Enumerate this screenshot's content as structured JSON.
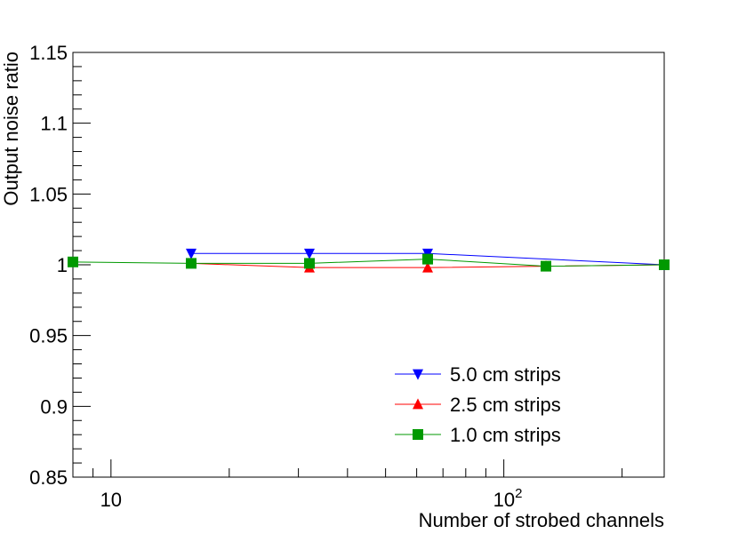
{
  "chart_data": {
    "type": "line",
    "title": "",
    "xlabel": "Number of strobed channels",
    "ylabel": "Output noise ratio",
    "x_scale": "log",
    "xlim": [
      8,
      256
    ],
    "ylim": [
      0.85,
      1.15
    ],
    "grid": false,
    "legend_position": "bottom-right",
    "x_ticks": [
      {
        "value": 10,
        "label": "10",
        "exp": ""
      },
      {
        "value": 100,
        "label": "10",
        "exp": "2"
      }
    ],
    "y_ticks": [
      {
        "value": 0.85,
        "label": "0.85"
      },
      {
        "value": 0.9,
        "label": "0.9"
      },
      {
        "value": 0.95,
        "label": "0.95"
      },
      {
        "value": 1.0,
        "label": "1"
      },
      {
        "value": 1.05,
        "label": "1.05"
      },
      {
        "value": 1.1,
        "label": "1.1"
      },
      {
        "value": 1.15,
        "label": "1.15"
      }
    ],
    "series": [
      {
        "name": "5.0 cm strips",
        "color": "#0000ff",
        "marker": "triangle-down",
        "x": [
          16,
          32,
          64,
          256
        ],
        "y": [
          1.008,
          1.008,
          1.008,
          1.0
        ]
      },
      {
        "name": "2.5 cm strips",
        "color": "#ff0000",
        "marker": "triangle-up",
        "x": [
          16,
          32,
          64,
          128,
          256
        ],
        "y": [
          1.001,
          0.998,
          0.998,
          0.999,
          1.0
        ]
      },
      {
        "name": "1.0 cm strips",
        "color": "#009900",
        "marker": "square",
        "x": [
          8,
          16,
          32,
          64,
          128,
          256
        ],
        "y": [
          1.002,
          1.001,
          1.001,
          1.004,
          0.999,
          1.0
        ]
      }
    ]
  }
}
